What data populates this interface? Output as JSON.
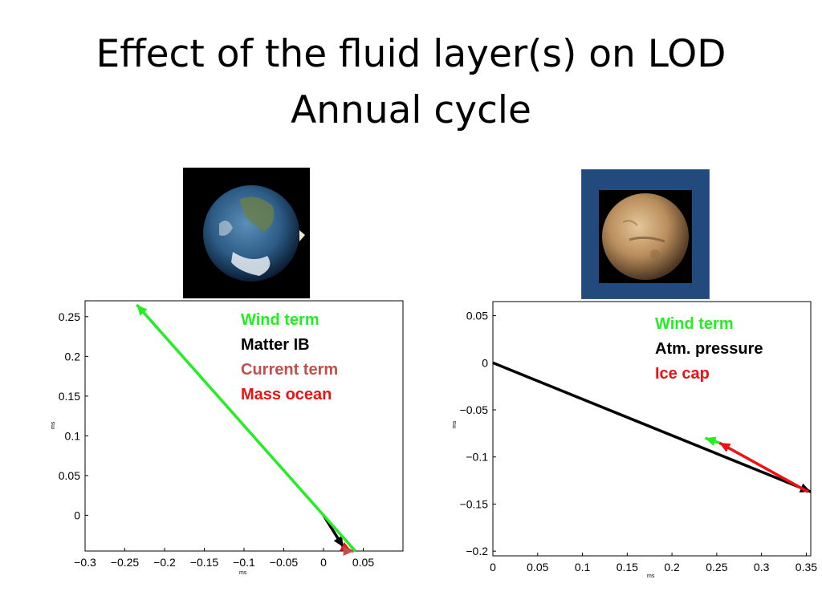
{
  "slide": {
    "title_line1": "Effect of the fluid layer(s) on LOD",
    "title_line2": "Annual cycle"
  },
  "images": {
    "earth": "earth-globe-image",
    "mars": "mars-globe-image"
  },
  "legend_left": {
    "items": [
      {
        "label": "Wind term",
        "color": "#22ee22"
      },
      {
        "label": "Matter IB",
        "color": "#000000"
      },
      {
        "label": "Current term",
        "color": "#c0504d"
      },
      {
        "label": "Mass ocean",
        "color": "#ee1111"
      }
    ]
  },
  "legend_right": {
    "items": [
      {
        "label": "Wind term",
        "color": "#22ee22"
      },
      {
        "label": "Atm. pressure",
        "color": "#000000"
      },
      {
        "label": "Ice cap",
        "color": "#ee1111"
      }
    ]
  },
  "chart_data": [
    {
      "type": "line",
      "xlabel": "ms",
      "ylabel": "ms",
      "xlim": [
        -0.3,
        0.1
      ],
      "ylim": [
        -0.045,
        0.27
      ],
      "xticks": [
        "-0.3",
        "-0.25",
        "-0.2",
        "-0.15",
        "-0.1",
        "-0.05",
        "0",
        "0.05"
      ],
      "yticks": [
        "0",
        "0.05",
        "0.1",
        "0.15",
        "0.2",
        "0.25"
      ],
      "series": [
        {
          "name": "Matter IB",
          "color": "#000000",
          "from": [
            0,
            0
          ],
          "to": [
            0.025,
            -0.04
          ]
        },
        {
          "name": "Mass ocean",
          "color": "#ee1111",
          "from": [
            0.025,
            -0.04
          ],
          "to": [
            0.035,
            -0.045
          ]
        },
        {
          "name": "Current term",
          "color": "#c0504d",
          "from": [
            0.035,
            -0.045
          ],
          "to": [
            0.038,
            -0.045
          ]
        },
        {
          "name": "Wind term",
          "color": "#22ee22",
          "from": [
            0.04,
            -0.045
          ],
          "to": [
            -0.235,
            0.265
          ]
        }
      ]
    },
    {
      "type": "line",
      "xlabel": "ms",
      "ylabel": "ms",
      "xlim": [
        0,
        0.355
      ],
      "ylim": [
        -0.205,
        0.065
      ],
      "xticks": [
        "0",
        "0.05",
        "0.1",
        "0.15",
        "0.2",
        "0.25",
        "0.3",
        "0.35"
      ],
      "yticks": [
        "0.05",
        "0",
        "−0.05",
        "−0.1",
        "−0.15",
        "−0.2"
      ],
      "series": [
        {
          "name": "Atm. pressure",
          "color": "#000000",
          "from": [
            0,
            0
          ],
          "to": [
            0.355,
            -0.137
          ]
        },
        {
          "name": "Ice cap",
          "color": "#ee1111",
          "from": [
            0.352,
            -0.137
          ],
          "to": [
            0.253,
            -0.085
          ]
        },
        {
          "name": "Wind term",
          "color": "#22ee22",
          "from": [
            0.253,
            -0.085
          ],
          "to": [
            0.237,
            -0.08
          ]
        }
      ]
    }
  ]
}
